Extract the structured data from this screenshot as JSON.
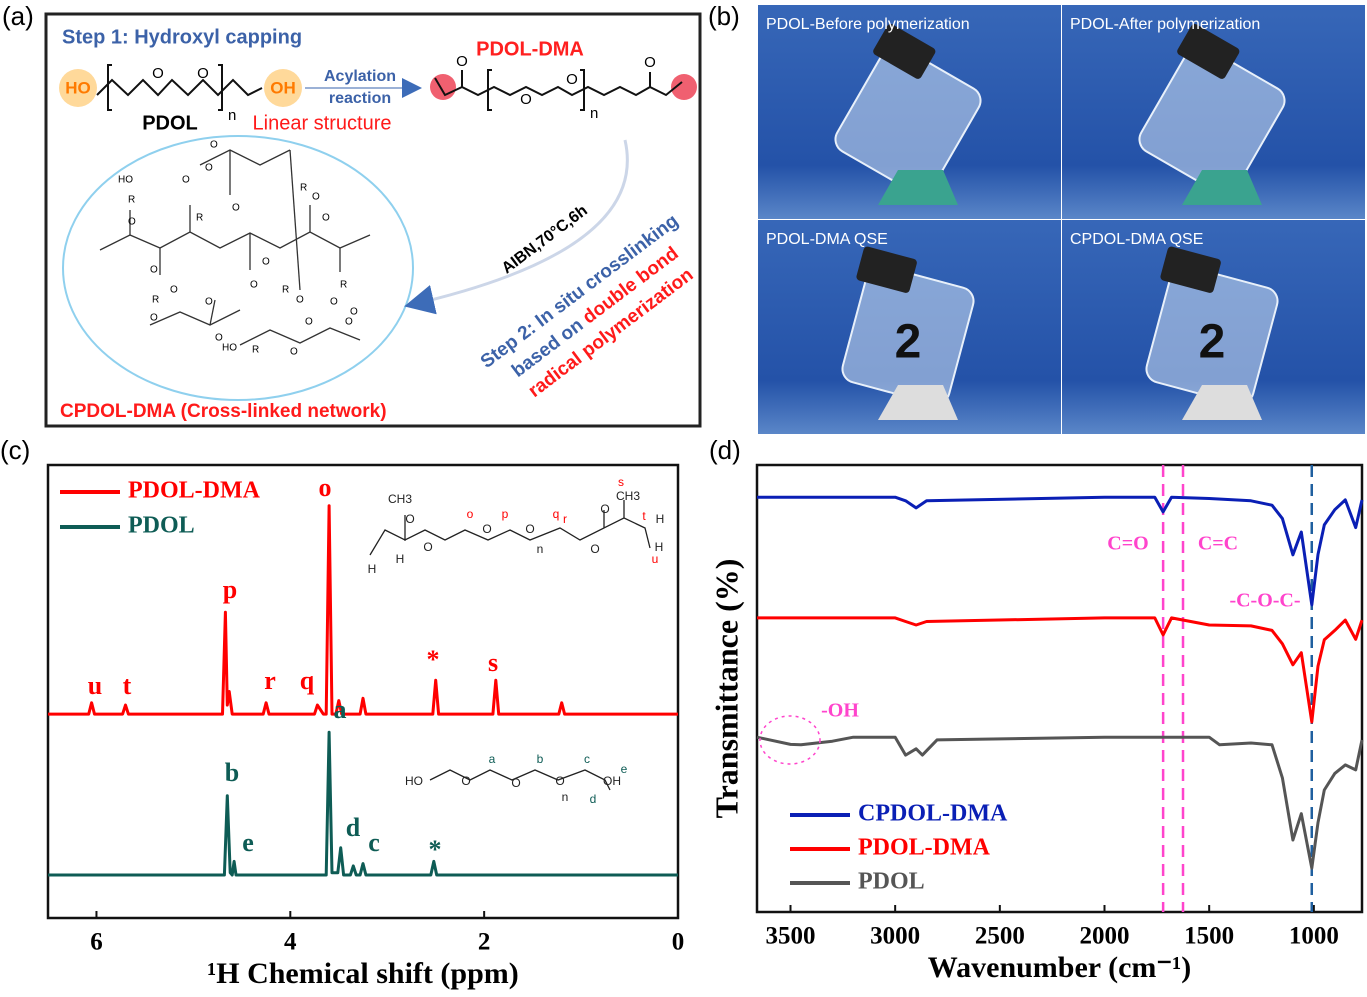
{
  "panel_a": {
    "label": "(a)",
    "step1": "Step 1: Hydroxyl capping",
    "product": "PDOL-DMA",
    "ho": "HO",
    "oh": "OH",
    "ether_o": [
      "O",
      "O"
    ],
    "n": "n",
    "reactant": "PDOL",
    "linear": "Linear structure",
    "acylation": [
      "Acylation",
      "reaction"
    ],
    "product_atoms": [
      "O",
      "O",
      "O",
      "n",
      "O"
    ],
    "conditions": "AIBN,70°C,6h",
    "step2": [
      "Step 2: In situ crosslinking",
      "based on ",
      "double bond",
      "radical polymerization"
    ],
    "network_atoms": [
      "HO",
      "R",
      "O",
      "O",
      "O",
      "R",
      "O",
      "O",
      "O",
      "O",
      "R",
      "O",
      "O",
      "O",
      "R",
      "O",
      "O",
      "R",
      "O",
      "O",
      "O",
      "O",
      "R",
      "O",
      "HO",
      "R",
      "O",
      "O",
      "O"
    ],
    "network_name": "CPDOL-DMA (Cross-linked network)"
  },
  "panel_b": {
    "label": "(b)",
    "captions": [
      "PDOL-Before polymerization",
      "PDOL-After polymerization",
      "PDOL-DMA QSE",
      "CPDOL-DMA QSE"
    ],
    "vial_marks": [
      "2",
      "2"
    ]
  },
  "chart_data": [
    {
      "type": "line",
      "panel_label": "(c)",
      "xlabel": "¹H Chemical shift (ppm)",
      "xlim": [
        6.5,
        0
      ],
      "xticks": [
        6,
        4,
        2,
        0
      ],
      "ylim": [
        0,
        100
      ],
      "legend": "upper left",
      "series": [
        {
          "name": "PDOL-DMA",
          "color": "#ff0000",
          "x": [
            6.5,
            6.08,
            6.05,
            6.02,
            5.73,
            5.7,
            5.67,
            4.7,
            4.67,
            4.65,
            4.63,
            4.6,
            4.28,
            4.25,
            4.22,
            3.75,
            3.72,
            3.66,
            3.63,
            3.6,
            3.57,
            3.53,
            3.5,
            3.47,
            3.28,
            3.25,
            3.22,
            2.53,
            2.5,
            2.47,
            1.91,
            1.88,
            1.85,
            1.23,
            1.2,
            1.17,
            0
          ],
          "values": [
            45,
            45,
            47.5,
            45,
            45,
            47,
            45,
            45,
            67.5,
            47,
            50,
            45,
            45,
            47.5,
            45,
            45,
            47,
            45,
            45,
            91,
            45,
            45,
            48,
            45,
            45,
            48.5,
            45,
            45,
            52.5,
            45,
            45,
            52.5,
            45,
            45,
            47.5,
            45,
            45
          ]
        },
        {
          "name": "PDOL",
          "color": "#0e5c55",
          "x": [
            6.5,
            4.68,
            4.65,
            4.62,
            4.6,
            4.58,
            4.56,
            3.63,
            3.6,
            3.57,
            3.51,
            3.48,
            3.45,
            3.38,
            3.35,
            3.32,
            3.28,
            3.25,
            3.22,
            2.55,
            2.52,
            2.49,
            0
          ],
          "values": [
            9.5,
            9.5,
            27,
            10,
            9.5,
            12.5,
            9.5,
            9.5,
            41,
            10,
            10,
            15.5,
            9.5,
            9.5,
            11.5,
            9.5,
            9.5,
            12,
            9.5,
            9.5,
            12.5,
            9.5,
            9.5
          ]
        }
      ],
      "peak_labels": [
        [
          "u",
          "t",
          "r",
          "q",
          "p",
          "o",
          "*",
          "s"
        ],
        [
          "a",
          "b",
          "e",
          "d",
          "c",
          "*"
        ]
      ],
      "structure_labels": [
        [
          "CH3",
          "H",
          "H",
          "O",
          "O",
          "o",
          "O",
          "p",
          "O",
          "q",
          "n",
          "r",
          "O",
          "O",
          "CH3",
          "s",
          "t",
          "H",
          "H",
          "u"
        ],
        [
          "HO",
          "O",
          "a",
          "O",
          "b",
          "O",
          "c",
          "n",
          "OH",
          "e",
          "d"
        ]
      ]
    },
    {
      "type": "line",
      "panel_label": "(d)",
      "xlabel": "Wavenumber (cm⁻¹)",
      "ylabel": "Transmittance (%)",
      "xlim": [
        3660,
        770
      ],
      "xticks": [
        3500,
        3000,
        2500,
        2000,
        1500,
        1000
      ],
      "ylim": [
        0,
        100
      ],
      "legend": "lower left",
      "series": [
        {
          "name": "CPDOL-DMA",
          "color": "#0a1fb5",
          "x": [
            3660,
            3000,
            2950,
            2900,
            2850,
            2000,
            1760,
            1720,
            1680,
            1500,
            1300,
            1200,
            1150,
            1100,
            1060,
            1010,
            980,
            950,
            900,
            850,
            800,
            770
          ],
          "values": [
            92.8,
            92.8,
            92,
            90.4,
            92,
            92.8,
            92.8,
            89.5,
            92.8,
            92.5,
            92,
            91,
            88,
            79.9,
            85,
            68.7,
            80,
            86.6,
            90,
            92.2,
            86,
            92.2
          ]
        },
        {
          "name": "PDOL-DMA",
          "color": "#ff0000",
          "x": [
            3660,
            3000,
            2950,
            2900,
            2850,
            2000,
            1760,
            1720,
            1680,
            1500,
            1300,
            1200,
            1150,
            1100,
            1060,
            1010,
            980,
            950,
            900,
            850,
            800,
            770
          ],
          "values": [
            65.8,
            65.8,
            65,
            64.2,
            65,
            65.8,
            65.8,
            62,
            65.8,
            64.2,
            64,
            63,
            60,
            55.3,
            58,
            42.5,
            55,
            60.9,
            63,
            65.3,
            61,
            65.3
          ]
        },
        {
          "name": "PDOL",
          "color": "#555555",
          "x": [
            3660,
            3500,
            3450,
            3300,
            3200,
            3000,
            2950,
            2900,
            2870,
            2800,
            2000,
            1500,
            1450,
            1300,
            1200,
            1150,
            1100,
            1060,
            1010,
            980,
            950,
            900,
            850,
            800,
            770
          ],
          "values": [
            39.1,
            37.5,
            37.4,
            38.2,
            39.1,
            39.1,
            35.1,
            36.5,
            35.1,
            38.5,
            39.1,
            39.1,
            37.4,
            37.8,
            37.4,
            30,
            16.1,
            22,
            9.8,
            20,
            27.3,
            31,
            32.9,
            31.8,
            38.5
          ]
        }
      ],
      "reference_lines": [
        {
          "x": 1720,
          "color": "#ff44cc"
        },
        {
          "x": 1625,
          "color": "#ff44cc"
        },
        {
          "x": 1010,
          "color": "#1f5f9f"
        }
      ],
      "annotations": [
        "C=O",
        "C=C",
        "-C-O-C-",
        "-OH"
      ]
    }
  ]
}
